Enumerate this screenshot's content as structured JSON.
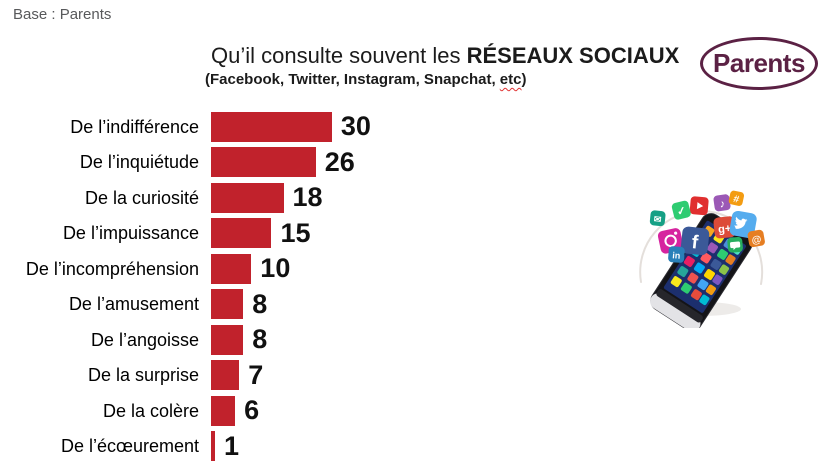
{
  "page": {
    "background": "#ffffff"
  },
  "base_note": "Base : Parents",
  "header": {
    "title_regular": "Qu’il consulte souvent les ",
    "title_bold": "RÉSEAUX SOCIAUX",
    "subtitle_before_etc": "(Facebook, Twitter, Instagram, Snapchat, ",
    "subtitle_etc": "etc",
    "subtitle_after_etc": ")"
  },
  "logo": {
    "label": "Parents",
    "color": "#5b2144"
  },
  "chart_data": {
    "type": "bar",
    "orientation": "horizontal",
    "title": "Qu’il consulte souvent les RÉSEAUX SOCIAUX",
    "subtitle": "(Facebook, Twitter, Instagram, Snapchat, etc)",
    "categories": [
      "De l’indifférence",
      "De l’inquiétude",
      "De la curiosité",
      "De l’impuissance",
      "De l’incompréhension",
      "De l’amusement",
      "De l’angoisse",
      "De la surprise",
      "De la colère",
      "De l’écœurement"
    ],
    "values": [
      30,
      26,
      18,
      15,
      10,
      8,
      8,
      7,
      6,
      1
    ],
    "bar_color": "#c1222c",
    "value_label_color": "#111111",
    "xlim": [
      0,
      31
    ],
    "grid": false,
    "legend": false,
    "value_labels_shown": true
  },
  "illustration": {
    "name": "smartphone-with-social-media-icons",
    "icons": [
      "instagram-icon",
      "facebook-icon",
      "google-plus-icon",
      "twitter-icon",
      "youtube-icon",
      "music-icon",
      "mail-icon",
      "linkedin-icon",
      "at-icon",
      "check-icon",
      "hashtag-icon"
    ]
  }
}
